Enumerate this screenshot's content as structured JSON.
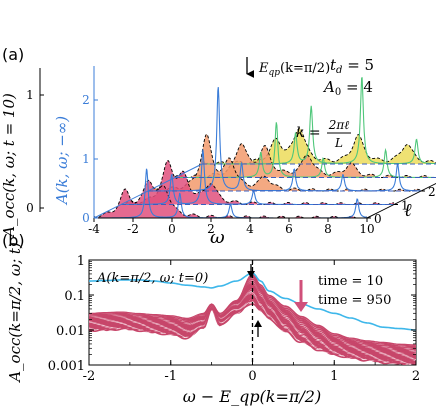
{
  "panel_a": {
    "label": "(a)",
    "params": {
      "td": "t_d = 5",
      "A0": "A_0 = 4"
    },
    "k_formula": {
      "lhs": "k =",
      "num": "2πℓ",
      "den": "L"
    },
    "qp_arrow_label": "E_qp(k=π/2)",
    "left_axis": {
      "label": "A_occ(k, ω; t = 10)",
      "ticks": [
        "0",
        "1"
      ]
    },
    "blue_axis": {
      "label": "A(k, ω; −∞)",
      "ticks": [
        "0",
        "1",
        "2"
      ]
    },
    "colors": {
      "occupied": "#e0507c",
      "orange": "#f29a6c",
      "yellow": "#ecdc5a",
      "blue_curve": "#3b7dd8",
      "green_curve": "#4fc77a"
    }
  },
  "panel_b": {
    "label": "(b)",
    "annotation": "A(k=π/2, ω; t=0)",
    "legend": {
      "top": "time = 10",
      "bottom": "time = 950"
    },
    "colors": {
      "band": "#c7466a",
      "t0_curve": "#3eb7ea",
      "arrow": "#d0507a"
    }
  },
  "chart_data": [
    {
      "type": "area",
      "panel": "(a)",
      "xlabel": "ω",
      "ylabel": "A_occ(k, ω; t = 10)",
      "y2label": "A(k, ω; −∞)",
      "zlabel": "ℓ",
      "x_ticks": [
        "-4",
        "-2",
        "0",
        "2",
        "4",
        "6",
        "8",
        "10"
      ],
      "l_ticks": [
        "0",
        "1",
        "2",
        "3",
        "4"
      ],
      "xlim": [
        -4,
        10
      ],
      "ylim": [
        0,
        1.2
      ],
      "y2lim": [
        0,
        2.3
      ],
      "series": [
        {
          "l": 0,
          "peaks_occ": [
            [
              -2.4,
              0.22
            ],
            [
              -1.2,
              0.3
            ],
            [
              -0.4,
              0.24
            ]
          ],
          "peaks_blue": [
            [
              -1.3,
              0.9
            ],
            [
              0.4,
              0.45
            ],
            [
              3.0,
              0.25
            ],
            [
              9.5,
              0.35
            ]
          ]
        },
        {
          "l": 1,
          "peaks_occ": [
            [
              -1.6,
              0.35
            ],
            [
              -0.8,
              0.22
            ],
            [
              0.6,
              0.18
            ]
          ],
          "peaks_blue": [
            [
              -1.4,
              0.55
            ],
            [
              0.2,
              1.0
            ],
            [
              2.8,
              0.25
            ]
          ]
        },
        {
          "l": 2,
          "peaks_occ": [
            [
              -1.0,
              0.48
            ],
            [
              0.2,
              0.26
            ],
            [
              2.0,
              0.12
            ]
          ],
          "peaks_blue": [
            [
              -0.4,
              1.9
            ],
            [
              0.8,
              0.5
            ],
            [
              3.5,
              0.4
            ],
            [
              6.0,
              0.3
            ],
            [
              8.8,
              0.5
            ]
          ]
        },
        {
          "l": 3,
          "peaks_occ": [
            [
              -0.6,
              0.3
            ],
            [
              0.6,
              0.25
            ],
            [
              2.8,
              0.2
            ],
            [
              5.0,
              0.12
            ]
          ],
          "peaks_blue": [
            [
              0.4,
              0.45
            ],
            [
              1.2,
              1.0
            ],
            [
              3.6,
              0.35
            ],
            [
              6.8,
              0.5
            ]
          ]
        },
        {
          "l": 4,
          "peaks_occ": [
            [
              -0.2,
              0.2
            ],
            [
              1.0,
              0.32
            ],
            [
              4.0,
              0.25
            ],
            [
              6.5,
              0.18
            ]
          ],
          "peaks_blue": [
            [
              0.8,
              0.55
            ],
            [
              1.6,
              1.05
            ],
            [
              4.2,
              1.6
            ],
            [
              7.0,
              0.45
            ],
            [
              9.4,
              0.7
            ]
          ]
        }
      ]
    },
    {
      "type": "line",
      "panel": "(b)",
      "xlabel": "ω − E_qp(k=π/2)",
      "ylabel": "A_occ(k=π/2, ω; t)",
      "xlim": [
        -2,
        2
      ],
      "ylim": [
        0.001,
        1
      ],
      "yscale": "log",
      "x_ticks": [
        "-2",
        "-1",
        "0",
        "1",
        "2"
      ],
      "y_ticks": [
        "0.001",
        "0.01",
        "0.1",
        "1"
      ],
      "x": [
        -2.0,
        -1.8,
        -1.6,
        -1.4,
        -1.2,
        -1.0,
        -0.8,
        -0.6,
        -0.5,
        -0.4,
        -0.2,
        0.0,
        0.1,
        0.2,
        0.4,
        0.6,
        0.8,
        1.0,
        1.2,
        1.4,
        1.6,
        1.8,
        2.0
      ],
      "series": [
        {
          "name": "A(k=π/2, ω; t=0)",
          "values": [
            0.25,
            0.26,
            0.27,
            0.27,
            0.25,
            0.22,
            0.19,
            0.17,
            0.16,
            0.18,
            0.25,
            0.42,
            0.25,
            0.13,
            0.08,
            0.055,
            0.04,
            0.03,
            0.022,
            0.016,
            0.012,
            0.011,
            0.01
          ]
        },
        {
          "name": "time = 10",
          "values": [
            0.03,
            0.032,
            0.033,
            0.03,
            0.028,
            0.026,
            0.022,
            0.03,
            0.055,
            0.03,
            0.07,
            0.4,
            0.2,
            0.1,
            0.05,
            0.025,
            0.014,
            0.008,
            0.006,
            0.005,
            0.0045,
            0.004,
            0.0038
          ]
        },
        {
          "name": "time = 950",
          "values": [
            0.01,
            0.01,
            0.011,
            0.01,
            0.0085,
            0.0075,
            0.006,
            0.012,
            0.04,
            0.014,
            0.03,
            0.06,
            0.035,
            0.022,
            0.009,
            0.0045,
            0.0028,
            0.002,
            0.0016,
            0.0014,
            0.0012,
            0.0011,
            0.001
          ]
        }
      ]
    }
  ]
}
